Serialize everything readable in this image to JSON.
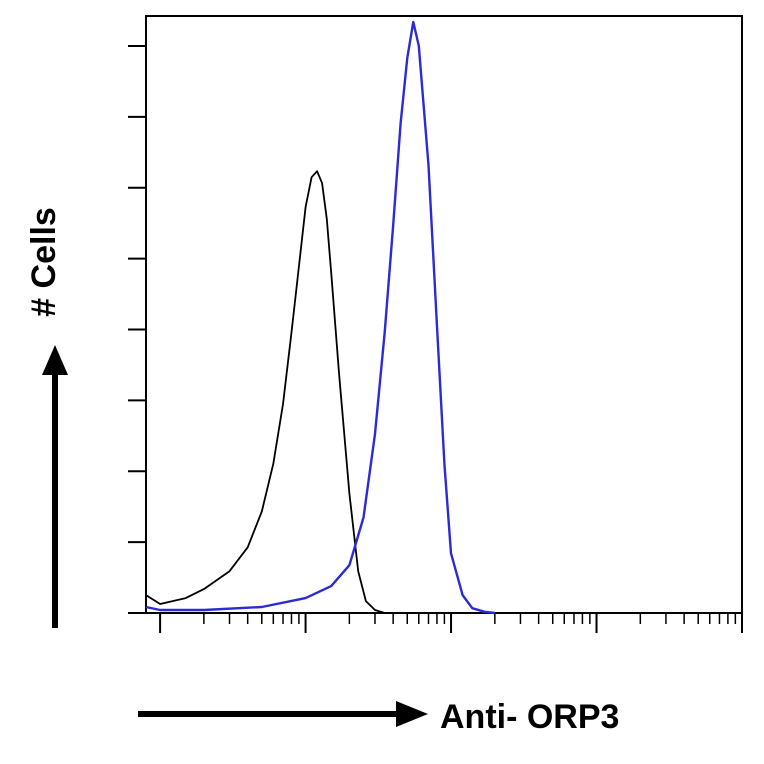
{
  "chart_data": {
    "type": "line",
    "title": "",
    "xlabel": "Anti- ORP3",
    "ylabel": "# Cells",
    "x_scale": "log",
    "xlim": [
      0.8,
      10000
    ],
    "ylim": [
      0,
      100
    ],
    "grid": false,
    "series": [
      {
        "color": "#000000",
        "x": [
          0.8,
          1,
          1.5,
          2,
          3,
          4,
          5,
          6,
          7,
          8,
          9,
          10,
          11,
          12,
          13,
          14,
          15,
          17,
          20,
          23,
          26,
          30,
          35,
          40
        ],
        "y": [
          3,
          1.5,
          2.5,
          4,
          7,
          11,
          17,
          25,
          35,
          47,
          58,
          68,
          73,
          74,
          72,
          66,
          57,
          40,
          20,
          7,
          2,
          0.5,
          0,
          0
        ]
      },
      {
        "color": "#2b2bd6",
        "x": [
          0.8,
          1,
          2,
          5,
          10,
          15,
          20,
          25,
          30,
          35,
          40,
          45,
          50,
          55,
          60,
          70,
          80,
          90,
          100,
          120,
          140,
          170,
          200
        ],
        "y": [
          1,
          0.5,
          0.5,
          1,
          2.5,
          4.5,
          8,
          16,
          30,
          47,
          65,
          82,
          93,
          99,
          95,
          75,
          48,
          25,
          10,
          3,
          0.8,
          0.2,
          0
        ]
      }
    ]
  }
}
